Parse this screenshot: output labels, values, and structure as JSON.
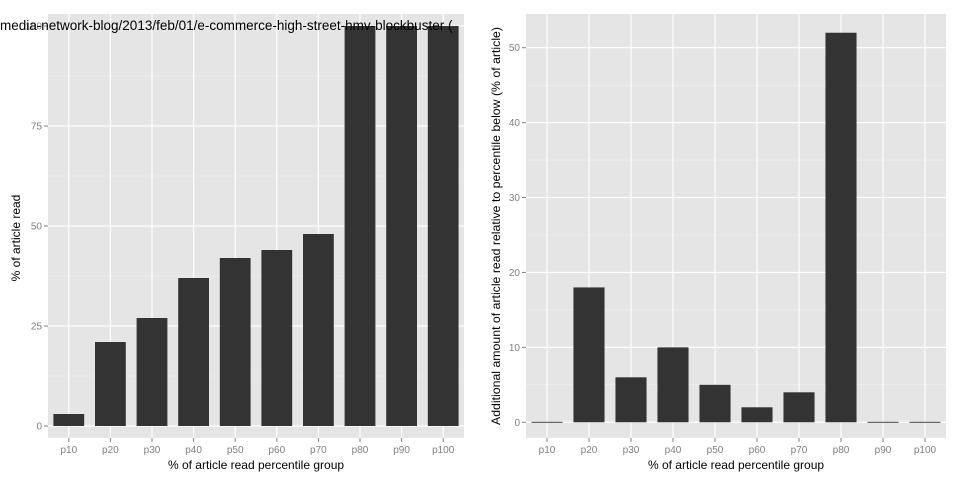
{
  "chart_data": [
    {
      "type": "bar",
      "title": "media-network-blog/2013/feb/01/e-commerce-high-street-hmv-blockbuster (",
      "xlabel": "% of article read percentile group",
      "ylabel": "% of article read",
      "categories": [
        "p10",
        "p20",
        "p30",
        "p40",
        "p50",
        "p60",
        "p70",
        "p80",
        "p90",
        "p100"
      ],
      "values": [
        3,
        21,
        27,
        37,
        42,
        44,
        48,
        100,
        100,
        100
      ],
      "ylim": [
        -3,
        103
      ],
      "yticks": [
        0,
        25,
        50,
        75,
        100
      ],
      "grid": true
    },
    {
      "type": "bar",
      "title": "",
      "xlabel": "% of article read percentile group",
      "ylabel": "Additional amount of article read relative to percentile below (% of article)",
      "categories": [
        "p10",
        "p20",
        "p30",
        "p40",
        "p50",
        "p60",
        "p70",
        "p80",
        "p90",
        "p100"
      ],
      "values": [
        0,
        18,
        6,
        10,
        5,
        2,
        4,
        52,
        0,
        0
      ],
      "ylim": [
        -2.1,
        54.5
      ],
      "yticks": [
        0,
        10,
        20,
        30,
        40,
        50
      ],
      "grid": true
    }
  ]
}
